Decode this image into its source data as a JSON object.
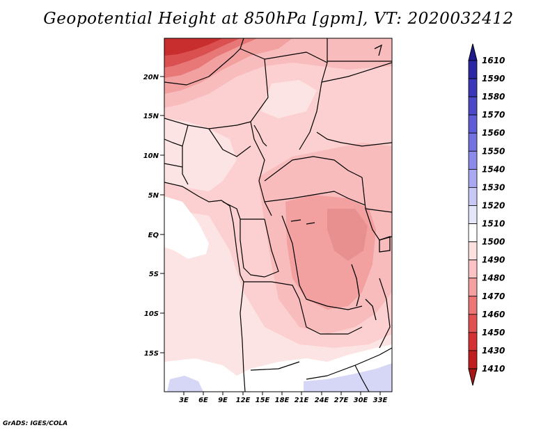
{
  "title": "Geopotential Height at 850hPa [gpm], VT: 2020032412",
  "footer": "GrADS: IGES/COLA",
  "map": {
    "lat_labels": [
      "20N",
      "15N",
      "10N",
      "5N",
      "EQ",
      "5S",
      "10S",
      "15S"
    ],
    "lon_labels": [
      "3E",
      "6E",
      "9E",
      "12E",
      "15E",
      "18E",
      "21E",
      "24E",
      "27E",
      "30E",
      "33E"
    ]
  },
  "colorbar": {
    "levels": [
      "1610",
      "1590",
      "1580",
      "1570",
      "1560",
      "1550",
      "1540",
      "1530",
      "1520",
      "1510",
      "1500",
      "1490",
      "1480",
      "1470",
      "1460",
      "1450",
      "1430",
      "1410"
    ],
    "colors": [
      "#1c1a8c",
      "#2a28a4",
      "#3a38b8",
      "#4b49c8",
      "#5e5cd6",
      "#7472e0",
      "#8d8be9",
      "#a9a8f0",
      "#c8c8f6",
      "#e6e6fb",
      "#ffffff",
      "#fde1e1",
      "#fbc3c3",
      "#f5a0a0",
      "#ec7676",
      "#e05252",
      "#d43232",
      "#c01e1e",
      "#a81616"
    ],
    "top_color": "#1c1a8c",
    "bottom_color": "#a81616"
  },
  "palette": {
    "white": "#ffffff",
    "pink1": "#fde4e4",
    "pink2": "#fcd0d0",
    "pink3": "#f9bcbc",
    "pink4": "#f2a0a0",
    "red1": "#e87878",
    "red2": "#da5050",
    "red3": "#c82e2e",
    "blue1": "#d6d6f6"
  }
}
